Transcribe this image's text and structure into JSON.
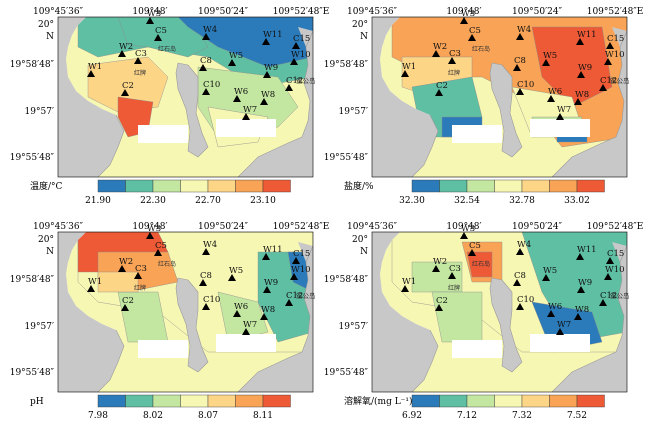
{
  "figure": {
    "lon_labels": [
      "109°45′36″",
      "109°48′",
      "109°50′24″",
      "109°52′48″E"
    ],
    "lat_labels": [
      "20°",
      "N",
      "19°58′48″",
      "19°57′",
      "19°55′48″"
    ],
    "place_labels": {
      "island": "鲎公岛",
      "rock": "红石岛",
      "reef": "红牌"
    }
  },
  "stations": [
    "W1",
    "W2",
    "W3",
    "W4",
    "W5",
    "W6",
    "W7",
    "W8",
    "W9",
    "W10",
    "W11",
    "C2",
    "C3",
    "C5",
    "C8",
    "C10",
    "C12",
    "C15"
  ],
  "panels": [
    {
      "id": "temperature",
      "legend_title": "温度/°C",
      "tick_labels": [
        "21.90",
        "22.30",
        "22.70",
        "23.10"
      ],
      "colors": [
        "#2b7bba",
        "#5fbfa3",
        "#c3e6a1",
        "#f7f7b4",
        "#fdd587",
        "#f8a356",
        "#ee5a36"
      ]
    },
    {
      "id": "salinity",
      "legend_title": "盐度/%",
      "tick_labels": [
        "32.30",
        "32.54",
        "32.78",
        "33.02"
      ],
      "colors": [
        "#2b7bba",
        "#5fbfa3",
        "#c3e6a1",
        "#f7f7b4",
        "#fdd587",
        "#f8a356",
        "#ee5a36"
      ]
    },
    {
      "id": "ph",
      "legend_title": "pH",
      "tick_labels": [
        "7.98",
        "8.02",
        "8.07",
        "8.11"
      ],
      "colors": [
        "#2b7bba",
        "#5fbfa3",
        "#c3e6a1",
        "#f7f7b4",
        "#fdd587",
        "#f8a356",
        "#ee5a36"
      ]
    },
    {
      "id": "do",
      "legend_title": "溶解氧/(mg L⁻¹)",
      "tick_labels": [
        "6.92",
        "7.12",
        "7.32",
        "7.52"
      ],
      "colors": [
        "#2b7bba",
        "#5fbfa3",
        "#c3e6a1",
        "#f7f7b4",
        "#fdd587",
        "#f8a356",
        "#ee5a36"
      ]
    }
  ]
}
